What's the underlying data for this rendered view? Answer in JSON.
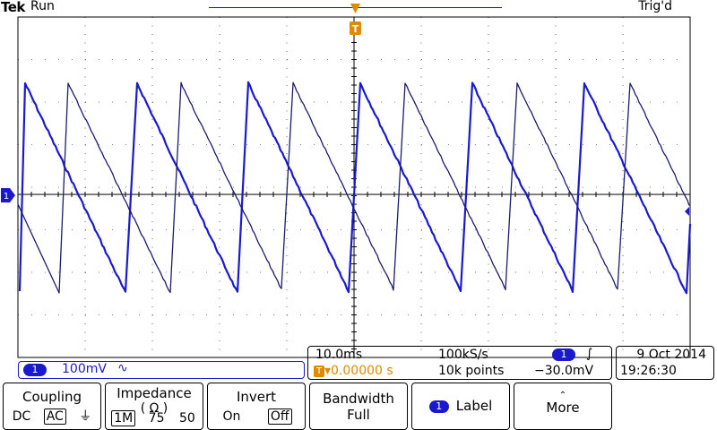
{
  "header": {
    "brand": "Tek",
    "run_state": "Run",
    "trigger_state": "Trig'd"
  },
  "markers": {
    "trigger_position": "T",
    "ch1_ground": "1",
    "ch1_label": "1"
  },
  "channel": {
    "badge": "1",
    "scale": "100mV",
    "bandwidth_symbol": "∿"
  },
  "timebase": {
    "scale": "10.0ms",
    "sample_rate": "100kS/s",
    "record_length": "10k points",
    "delay_prefix": "T",
    "delay": "▾0.00000 s"
  },
  "trigger": {
    "source": "1",
    "slope": "∫",
    "level": "−30.0mV"
  },
  "datetime": {
    "date": "9 Oct  2014",
    "time": "19:26:30"
  },
  "menu": {
    "coupling": {
      "title": "Coupling",
      "options": [
        "DC",
        "AC",
        "⏚"
      ],
      "selected": "AC"
    },
    "impedance": {
      "title": "Impedance",
      "subtitle": "( Ω )",
      "options": [
        "1M",
        "75",
        "50"
      ],
      "selected": "1M"
    },
    "invert": {
      "title": "Invert",
      "options": [
        "On",
        "Off"
      ],
      "selected": "Off"
    },
    "bandwidth": {
      "title": "Bandwidth",
      "value": "Full"
    },
    "label": {
      "badge": "1",
      "title": "Label"
    },
    "more": {
      "caret": "⌃",
      "title": "More"
    }
  },
  "colors": {
    "trace": "#1a1acc",
    "trace_secondary": "#1c1c6e",
    "trigger_marker": "#e08a00",
    "graticule": "#000000"
  }
}
